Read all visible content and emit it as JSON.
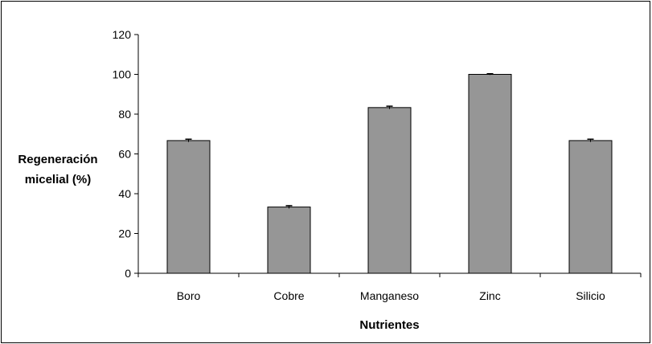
{
  "chart_data": {
    "type": "bar",
    "categories": [
      "Boro",
      "Cobre",
      "Manganeso",
      "Zinc",
      "Silicio"
    ],
    "values": [
      66.7,
      33.3,
      83.3,
      100,
      66.7
    ],
    "errors": [
      0.7,
      0.7,
      0.7,
      0.3,
      0.7
    ],
    "xlabel": "Nutrientes",
    "ylabel_lines": [
      "Regeneración",
      "micelial (%)"
    ],
    "ylim": [
      0,
      120
    ],
    "yticks": [
      0,
      20,
      40,
      60,
      80,
      100,
      120
    ],
    "grid": false,
    "legend": "none",
    "colors": {
      "bar": "#969696",
      "bar_stroke": "#000000",
      "axis": "#000000"
    }
  }
}
